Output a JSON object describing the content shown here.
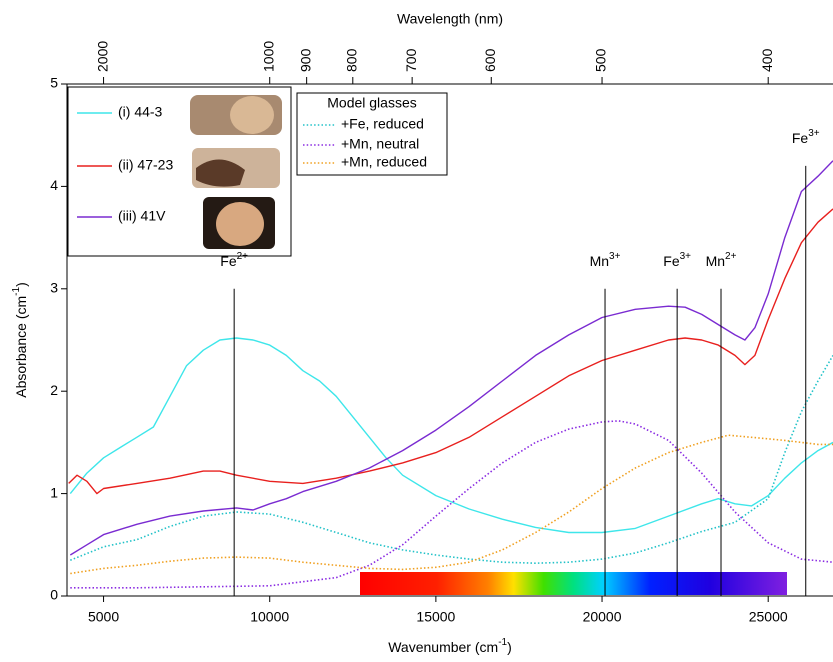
{
  "chart_data": {
    "type": "line",
    "xlabel": [
      "Wavenumber (cm",
      "-1",
      ")"
    ],
    "ylabel": [
      "Absorbance (cm",
      "-1",
      ")"
    ],
    "x2label": "Wavelength (nm)",
    "xlim": [
      3900,
      26950
    ],
    "xticks": [
      5000,
      10000,
      15000,
      20000,
      25000
    ],
    "ylim": [
      0,
      5
    ],
    "yticks": [
      0,
      1,
      2,
      3,
      4,
      5
    ],
    "x2ticks": [
      2000,
      1000,
      900,
      800,
      700,
      600,
      500,
      400
    ],
    "series": [
      {
        "name": "(i) 44-3",
        "color": "#3ee6ea",
        "style": "solid",
        "x": [
          4000,
          4500,
          5000,
          5500,
          6000,
          6500,
          7000,
          7500,
          8000,
          8500,
          9000,
          9500,
          10000,
          10500,
          11000,
          11500,
          12000,
          12500,
          13000,
          13500,
          14000,
          15000,
          16000,
          17000,
          18000,
          19000,
          20000,
          21000,
          22000,
          23000,
          23500,
          24000,
          24500,
          25000,
          25500,
          26000,
          26500,
          26950
        ],
        "values": [
          1.0,
          1.2,
          1.35,
          1.45,
          1.55,
          1.65,
          1.95,
          2.25,
          2.4,
          2.5,
          2.52,
          2.5,
          2.45,
          2.35,
          2.2,
          2.1,
          1.95,
          1.75,
          1.55,
          1.35,
          1.18,
          0.98,
          0.85,
          0.75,
          0.67,
          0.62,
          0.62,
          0.66,
          0.78,
          0.9,
          0.95,
          0.9,
          0.88,
          0.98,
          1.15,
          1.3,
          1.42,
          1.5
        ]
      },
      {
        "name": "(ii) 47-23",
        "color": "#e8201e",
        "style": "solid",
        "x": [
          3950,
          4200,
          4500,
          4800,
          5000,
          6000,
          7000,
          8000,
          8500,
          9000,
          10000,
          11000,
          12000,
          13000,
          14000,
          15000,
          16000,
          17000,
          18000,
          19000,
          20000,
          21000,
          22000,
          22500,
          23000,
          23500,
          24000,
          24300,
          24600,
          25000,
          25500,
          26000,
          26500,
          26950
        ],
        "values": [
          1.1,
          1.18,
          1.12,
          1.0,
          1.05,
          1.1,
          1.15,
          1.22,
          1.22,
          1.18,
          1.12,
          1.1,
          1.15,
          1.22,
          1.3,
          1.4,
          1.55,
          1.75,
          1.95,
          2.15,
          2.3,
          2.4,
          2.5,
          2.52,
          2.5,
          2.45,
          2.35,
          2.26,
          2.35,
          2.7,
          3.1,
          3.45,
          3.65,
          3.78
        ]
      },
      {
        "name": "(iii) 41V",
        "color": "#7a2bd1",
        "style": "solid",
        "x": [
          4000,
          4500,
          5000,
          6000,
          7000,
          8000,
          9000,
          9500,
          10000,
          10500,
          11000,
          12000,
          13000,
          14000,
          15000,
          16000,
          17000,
          18000,
          19000,
          20000,
          21000,
          22000,
          22500,
          23000,
          23500,
          24000,
          24300,
          24600,
          25000,
          25500,
          26000,
          26500,
          26950
        ],
        "values": [
          0.4,
          0.5,
          0.6,
          0.7,
          0.78,
          0.83,
          0.86,
          0.84,
          0.9,
          0.95,
          1.02,
          1.12,
          1.25,
          1.42,
          1.62,
          1.85,
          2.1,
          2.35,
          2.55,
          2.72,
          2.8,
          2.83,
          2.82,
          2.75,
          2.65,
          2.55,
          2.5,
          2.62,
          2.95,
          3.5,
          3.95,
          4.1,
          4.25
        ]
      },
      {
        "name": "+Fe, reduced",
        "color": "#22c2c8",
        "style": "dotted",
        "x": [
          4000,
          5000,
          6000,
          7000,
          8000,
          9000,
          10000,
          11000,
          12000,
          13000,
          14000,
          15000,
          16000,
          17000,
          18000,
          19000,
          20000,
          21000,
          22000,
          23000,
          24000,
          25000,
          25500,
          26000,
          26500,
          26950
        ],
        "values": [
          0.35,
          0.48,
          0.55,
          0.68,
          0.78,
          0.82,
          0.8,
          0.72,
          0.62,
          0.52,
          0.45,
          0.4,
          0.36,
          0.33,
          0.32,
          0.33,
          0.36,
          0.42,
          0.52,
          0.63,
          0.72,
          0.95,
          1.4,
          1.8,
          2.1,
          2.35
        ]
      },
      {
        "name": "+Mn, neutral",
        "color": "#8a2be2",
        "style": "dotted",
        "x": [
          4000,
          6000,
          8000,
          10000,
          12000,
          13000,
          14000,
          15000,
          16000,
          17000,
          18000,
          19000,
          20000,
          20500,
          21000,
          22000,
          23000,
          24000,
          25000,
          26000,
          26950
        ],
        "values": [
          0.08,
          0.08,
          0.09,
          0.1,
          0.18,
          0.3,
          0.5,
          0.78,
          1.05,
          1.3,
          1.5,
          1.63,
          1.7,
          1.71,
          1.68,
          1.52,
          1.2,
          0.82,
          0.52,
          0.36,
          0.33
        ]
      },
      {
        "name": "+Mn, reduced",
        "color": "#f0a020",
        "style": "dotted",
        "x": [
          4000,
          5000,
          6000,
          7000,
          8000,
          9000,
          10000,
          11000,
          12000,
          13000,
          14000,
          15000,
          16000,
          17000,
          18000,
          19000,
          20000,
          21000,
          22000,
          23000,
          23800,
          24500,
          25500,
          26500,
          26950
        ],
        "values": [
          0.22,
          0.27,
          0.3,
          0.34,
          0.37,
          0.38,
          0.37,
          0.33,
          0.3,
          0.27,
          0.26,
          0.28,
          0.33,
          0.45,
          0.62,
          0.82,
          1.05,
          1.25,
          1.4,
          1.5,
          1.57,
          1.55,
          1.52,
          1.48,
          1.48
        ]
      }
    ],
    "legend_title": "Model glasses",
    "annotations": [
      {
        "text": "Fe",
        "sup": "2+",
        "x": 8930,
        "y": 3
      },
      {
        "text": "Mn",
        "sup": "3+",
        "x": 20090,
        "y": 3
      },
      {
        "text": "Fe",
        "sup": "3+",
        "x": 22260,
        "y": 3
      },
      {
        "text": "Mn",
        "sup": "2+",
        "x": 23580,
        "y": 3
      },
      {
        "text": "Fe",
        "sup": "3+",
        "x": 26130,
        "y": 4.2
      }
    ]
  }
}
